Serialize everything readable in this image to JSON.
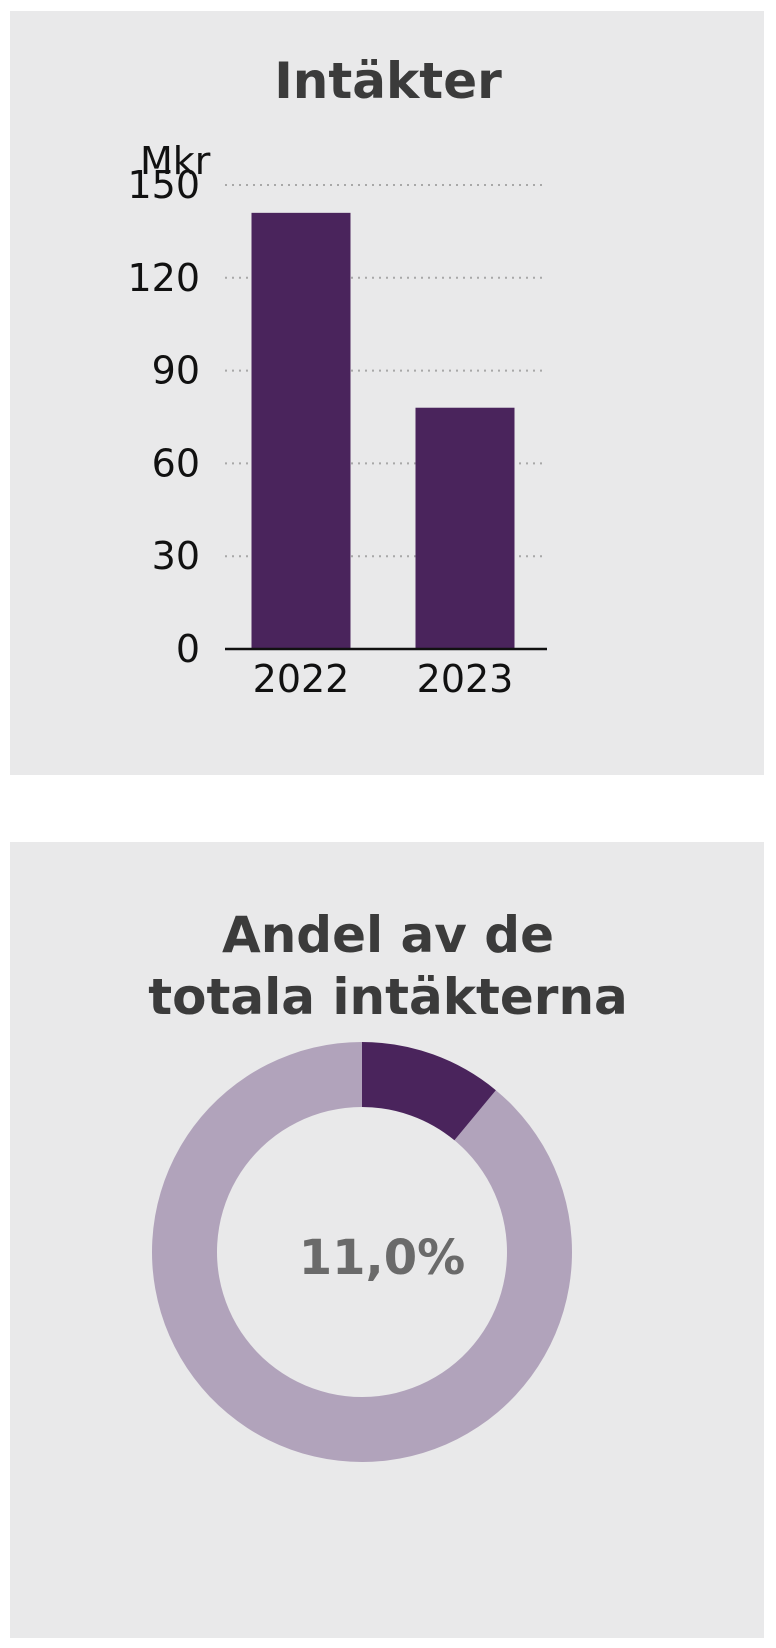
{
  "colors": {
    "panel_bg": "#e9e9ea",
    "bar": "#4a245c",
    "donut_highlight": "#4a245c",
    "donut_rest": "#b1a3bb",
    "gridline": "#a8a8a8"
  },
  "chart_data": [
    {
      "type": "bar",
      "title": "Intäkter",
      "unit": "Mkr",
      "categories": [
        "2022",
        "2023"
      ],
      "values": [
        141,
        78
      ],
      "ylim": [
        0,
        150
      ],
      "yticks": [
        0,
        30,
        60,
        90,
        120,
        150
      ],
      "grid": true,
      "legend": "none"
    },
    {
      "type": "pie",
      "title_lines": [
        "Andel av de",
        "totala intäkterna"
      ],
      "share": 0.11,
      "center_label": "11,0%",
      "legend": "none"
    }
  ]
}
